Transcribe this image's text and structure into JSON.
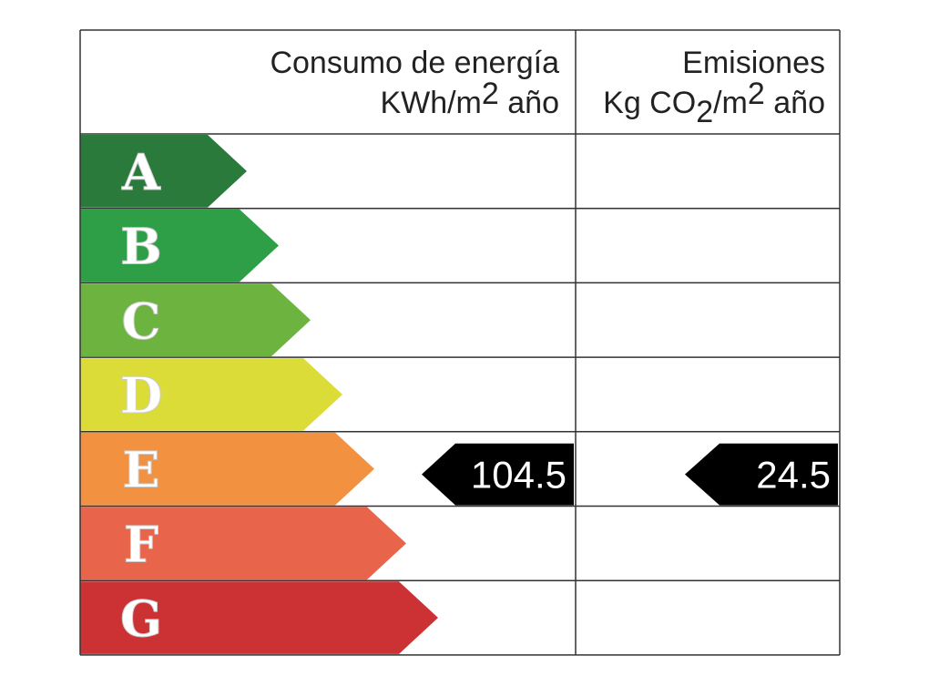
{
  "header": {
    "energy": {
      "title": "Consumo de energía",
      "unit": "KWh/m",
      "unit_sup": "2",
      "unit_end": " año"
    },
    "emissions": {
      "title": "Emisiones",
      "unit": "Kg CO",
      "unit_sub": "2",
      "unit_mid": "/m",
      "unit_sup": "2",
      "unit_end": " año"
    }
  },
  "classes": [
    {
      "letter": "A",
      "color": "#2a7a3c"
    },
    {
      "letter": "B",
      "color": "#2e9e47"
    },
    {
      "letter": "C",
      "color": "#6db33f"
    },
    {
      "letter": "D",
      "color": "#dcdc38"
    },
    {
      "letter": "E",
      "color": "#f29140"
    },
    {
      "letter": "F",
      "color": "#e8644a"
    },
    {
      "letter": "G",
      "color": "#cc3233"
    }
  ],
  "energy_value": 104.5,
  "emissions_value": 24.5
}
